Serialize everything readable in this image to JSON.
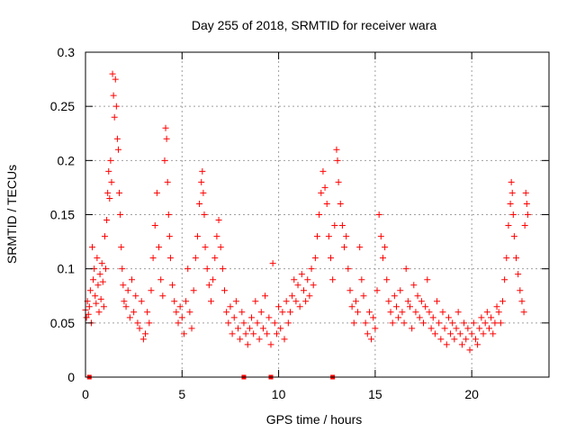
{
  "chart_data": {
    "type": "scatter",
    "title": "Day 255 of 2018, SRMTID for receiver wara",
    "xlabel": "GPS time / hours",
    "ylabel": "SRMTID / TECUs",
    "xlim": [
      0,
      24
    ],
    "ylim": [
      0,
      0.3
    ],
    "x_ticks": [
      0,
      5,
      10,
      15,
      20
    ],
    "x_tick_labels": [
      "0",
      "5",
      "10",
      "15",
      "20"
    ],
    "y_ticks": [
      0,
      0.05,
      0.1,
      0.15,
      0.2,
      0.25,
      0.3
    ],
    "y_tick_labels": [
      "0",
      "0.05",
      "0.1",
      "0.15",
      "0.2",
      "0.25",
      "0.3"
    ],
    "grid": true,
    "marker": "plus",
    "color": "#ff0000",
    "zero_markers_x": [
      0.2,
      8.2,
      9.6,
      12.8
    ],
    "points": [
      [
        0.0,
        0.062
      ],
      [
        0.05,
        0.055
      ],
      [
        0.1,
        0.07
      ],
      [
        0.15,
        0.058
      ],
      [
        0.2,
        0.065
      ],
      [
        0.25,
        0.08
      ],
      [
        0.3,
        0.05
      ],
      [
        0.35,
        0.12
      ],
      [
        0.4,
        0.09
      ],
      [
        0.45,
        0.1
      ],
      [
        0.5,
        0.075
      ],
      [
        0.55,
        0.068
      ],
      [
        0.6,
        0.11
      ],
      [
        0.65,
        0.085
      ],
      [
        0.7,
        0.06
      ],
      [
        0.75,
        0.095
      ],
      [
        0.8,
        0.072
      ],
      [
        0.85,
        0.105
      ],
      [
        0.9,
        0.088
      ],
      [
        0.95,
        0.065
      ],
      [
        1.0,
        0.13
      ],
      [
        1.05,
        0.1
      ],
      [
        1.1,
        0.145
      ],
      [
        1.15,
        0.17
      ],
      [
        1.2,
        0.19
      ],
      [
        1.25,
        0.165
      ],
      [
        1.3,
        0.2
      ],
      [
        1.35,
        0.18
      ],
      [
        1.4,
        0.28
      ],
      [
        1.45,
        0.26
      ],
      [
        1.5,
        0.24
      ],
      [
        1.55,
        0.275
      ],
      [
        1.6,
        0.25
      ],
      [
        1.65,
        0.22
      ],
      [
        1.7,
        0.21
      ],
      [
        1.75,
        0.17
      ],
      [
        1.8,
        0.15
      ],
      [
        1.85,
        0.12
      ],
      [
        1.9,
        0.1
      ],
      [
        1.95,
        0.085
      ],
      [
        2.0,
        0.07
      ],
      [
        2.1,
        0.065
      ],
      [
        2.2,
        0.08
      ],
      [
        2.3,
        0.055
      ],
      [
        2.4,
        0.09
      ],
      [
        2.5,
        0.06
      ],
      [
        2.6,
        0.075
      ],
      [
        2.7,
        0.05
      ],
      [
        2.8,
        0.045
      ],
      [
        2.9,
        0.07
      ],
      [
        3.0,
        0.035
      ],
      [
        3.1,
        0.04
      ],
      [
        3.2,
        0.06
      ],
      [
        3.3,
        0.05
      ],
      [
        3.4,
        0.08
      ],
      [
        3.5,
        0.11
      ],
      [
        3.6,
        0.14
      ],
      [
        3.7,
        0.17
      ],
      [
        3.8,
        0.12
      ],
      [
        3.9,
        0.09
      ],
      [
        4.0,
        0.075
      ],
      [
        4.1,
        0.2
      ],
      [
        4.15,
        0.23
      ],
      [
        4.2,
        0.22
      ],
      [
        4.25,
        0.18
      ],
      [
        4.3,
        0.15
      ],
      [
        4.35,
        0.13
      ],
      [
        4.4,
        0.11
      ],
      [
        4.5,
        0.085
      ],
      [
        4.6,
        0.07
      ],
      [
        4.7,
        0.06
      ],
      [
        4.8,
        0.05
      ],
      [
        4.9,
        0.065
      ],
      [
        5.0,
        0.055
      ],
      [
        5.1,
        0.04
      ],
      [
        5.2,
        0.07
      ],
      [
        5.3,
        0.1
      ],
      [
        5.4,
        0.06
      ],
      [
        5.5,
        0.045
      ],
      [
        5.6,
        0.08
      ],
      [
        5.7,
        0.11
      ],
      [
        5.8,
        0.13
      ],
      [
        5.9,
        0.16
      ],
      [
        6.0,
        0.18
      ],
      [
        6.05,
        0.19
      ],
      [
        6.1,
        0.17
      ],
      [
        6.15,
        0.15
      ],
      [
        6.2,
        0.12
      ],
      [
        6.3,
        0.1
      ],
      [
        6.4,
        0.085
      ],
      [
        6.5,
        0.07
      ],
      [
        6.6,
        0.09
      ],
      [
        6.7,
        0.11
      ],
      [
        6.8,
        0.13
      ],
      [
        6.9,
        0.145
      ],
      [
        7.0,
        0.12
      ],
      [
        7.1,
        0.1
      ],
      [
        7.2,
        0.08
      ],
      [
        7.3,
        0.06
      ],
      [
        7.4,
        0.05
      ],
      [
        7.5,
        0.065
      ],
      [
        7.6,
        0.04
      ],
      [
        7.7,
        0.055
      ],
      [
        7.8,
        0.07
      ],
      [
        7.9,
        0.045
      ],
      [
        8.0,
        0.035
      ],
      [
        8.1,
        0.06
      ],
      [
        8.2,
        0.05
      ],
      [
        8.3,
        0.04
      ],
      [
        8.4,
        0.03
      ],
      [
        8.5,
        0.045
      ],
      [
        8.6,
        0.055
      ],
      [
        8.7,
        0.04
      ],
      [
        8.8,
        0.07
      ],
      [
        8.9,
        0.05
      ],
      [
        9.0,
        0.035
      ],
      [
        9.1,
        0.06
      ],
      [
        9.2,
        0.045
      ],
      [
        9.3,
        0.075
      ],
      [
        9.4,
        0.04
      ],
      [
        9.5,
        0.055
      ],
      [
        9.6,
        0.03
      ],
      [
        9.7,
        0.105
      ],
      [
        9.8,
        0.05
      ],
      [
        9.9,
        0.04
      ],
      [
        10.0,
        0.065
      ],
      [
        10.1,
        0.045
      ],
      [
        10.2,
        0.06
      ],
      [
        10.3,
        0.035
      ],
      [
        10.4,
        0.07
      ],
      [
        10.5,
        0.05
      ],
      [
        10.6,
        0.06
      ],
      [
        10.7,
        0.075
      ],
      [
        10.8,
        0.09
      ],
      [
        10.9,
        0.07
      ],
      [
        11.0,
        0.085
      ],
      [
        11.1,
        0.065
      ],
      [
        11.2,
        0.095
      ],
      [
        11.3,
        0.08
      ],
      [
        11.4,
        0.07
      ],
      [
        11.5,
        0.09
      ],
      [
        11.6,
        0.075
      ],
      [
        11.7,
        0.1
      ],
      [
        11.8,
        0.085
      ],
      [
        11.9,
        0.11
      ],
      [
        12.0,
        0.13
      ],
      [
        12.1,
        0.15
      ],
      [
        12.2,
        0.17
      ],
      [
        12.3,
        0.19
      ],
      [
        12.4,
        0.175
      ],
      [
        12.5,
        0.16
      ],
      [
        12.6,
        0.13
      ],
      [
        12.7,
        0.11
      ],
      [
        12.8,
        0.09
      ],
      [
        12.9,
        0.14
      ],
      [
        13.0,
        0.21
      ],
      [
        13.05,
        0.2
      ],
      [
        13.1,
        0.18
      ],
      [
        13.2,
        0.16
      ],
      [
        13.3,
        0.14
      ],
      [
        13.4,
        0.12
      ],
      [
        13.5,
        0.13
      ],
      [
        13.6,
        0.1
      ],
      [
        13.7,
        0.08
      ],
      [
        13.8,
        0.065
      ],
      [
        13.9,
        0.05
      ],
      [
        14.0,
        0.07
      ],
      [
        14.1,
        0.06
      ],
      [
        14.2,
        0.12
      ],
      [
        14.3,
        0.09
      ],
      [
        14.4,
        0.075
      ],
      [
        14.5,
        0.05
      ],
      [
        14.6,
        0.04
      ],
      [
        14.7,
        0.06
      ],
      [
        14.8,
        0.035
      ],
      [
        14.9,
        0.055
      ],
      [
        15.0,
        0.045
      ],
      [
        15.1,
        0.08
      ],
      [
        15.2,
        0.15
      ],
      [
        15.3,
        0.13
      ],
      [
        15.4,
        0.11
      ],
      [
        15.5,
        0.12
      ],
      [
        15.6,
        0.09
      ],
      [
        15.7,
        0.07
      ],
      [
        15.8,
        0.06
      ],
      [
        15.9,
        0.05
      ],
      [
        16.0,
        0.075
      ],
      [
        16.1,
        0.065
      ],
      [
        16.2,
        0.055
      ],
      [
        16.3,
        0.08
      ],
      [
        16.4,
        0.06
      ],
      [
        16.5,
        0.05
      ],
      [
        16.6,
        0.1
      ],
      [
        16.7,
        0.07
      ],
      [
        16.8,
        0.065
      ],
      [
        16.9,
        0.045
      ],
      [
        17.0,
        0.085
      ],
      [
        17.1,
        0.06
      ],
      [
        17.2,
        0.075
      ],
      [
        17.3,
        0.055
      ],
      [
        17.4,
        0.07
      ],
      [
        17.5,
        0.05
      ],
      [
        17.6,
        0.065
      ],
      [
        17.7,
        0.09
      ],
      [
        17.8,
        0.06
      ],
      [
        17.9,
        0.045
      ],
      [
        18.0,
        0.055
      ],
      [
        18.1,
        0.04
      ],
      [
        18.2,
        0.07
      ],
      [
        18.3,
        0.05
      ],
      [
        18.4,
        0.035
      ],
      [
        18.5,
        0.06
      ],
      [
        18.6,
        0.045
      ],
      [
        18.7,
        0.03
      ],
      [
        18.8,
        0.055
      ],
      [
        18.9,
        0.04
      ],
      [
        19.0,
        0.05
      ],
      [
        19.1,
        0.035
      ],
      [
        19.2,
        0.045
      ],
      [
        19.3,
        0.06
      ],
      [
        19.4,
        0.04
      ],
      [
        19.5,
        0.03
      ],
      [
        19.6,
        0.05
      ],
      [
        19.7,
        0.035
      ],
      [
        19.8,
        0.045
      ],
      [
        19.9,
        0.025
      ],
      [
        20.0,
        0.04
      ],
      [
        20.1,
        0.05
      ],
      [
        20.2,
        0.035
      ],
      [
        20.3,
        0.03
      ],
      [
        20.4,
        0.045
      ],
      [
        20.5,
        0.055
      ],
      [
        20.6,
        0.04
      ],
      [
        20.7,
        0.05
      ],
      [
        20.8,
        0.06
      ],
      [
        20.9,
        0.045
      ],
      [
        21.0,
        0.055
      ],
      [
        21.1,
        0.04
      ],
      [
        21.2,
        0.05
      ],
      [
        21.3,
        0.065
      ],
      [
        21.4,
        0.06
      ],
      [
        21.5,
        0.05
      ],
      [
        21.6,
        0.07
      ],
      [
        21.7,
        0.09
      ],
      [
        21.8,
        0.11
      ],
      [
        21.9,
        0.14
      ],
      [
        22.0,
        0.16
      ],
      [
        22.05,
        0.18
      ],
      [
        22.1,
        0.17
      ],
      [
        22.15,
        0.15
      ],
      [
        22.2,
        0.13
      ],
      [
        22.3,
        0.11
      ],
      [
        22.4,
        0.095
      ],
      [
        22.5,
        0.08
      ],
      [
        22.6,
        0.07
      ],
      [
        22.7,
        0.06
      ],
      [
        22.75,
        0.14
      ],
      [
        22.8,
        0.17
      ],
      [
        22.85,
        0.16
      ],
      [
        22.9,
        0.15
      ]
    ]
  }
}
